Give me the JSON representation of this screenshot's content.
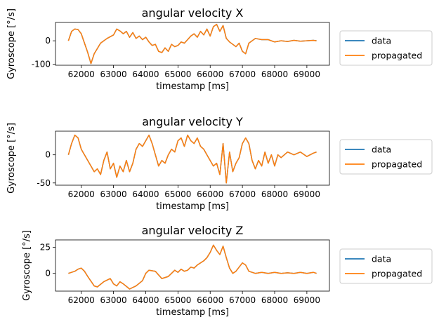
{
  "colors": {
    "data": "#1f77b4",
    "propagated": "#ff7f0e",
    "axis": "#000000",
    "legend_border": "#cccccc"
  },
  "chart_data": [
    {
      "type": "line",
      "title": "angular velocity X",
      "xlabel": "timestamp [ms]",
      "ylabel": "Gyroscope [°/s]",
      "xlim": [
        61200,
        69700
      ],
      "ylim": [
        -104,
        78
      ],
      "xticks": [
        62000,
        63000,
        64000,
        65000,
        66000,
        67000,
        68000,
        69000
      ],
      "yticks": [
        -100,
        0
      ],
      "legend": "right-outside",
      "series": [
        {
          "name": "data",
          "color": "#1f77b4"
        },
        {
          "name": "propagated",
          "color": "#ff7f0e"
        }
      ],
      "x": [
        61600,
        61700,
        61800,
        61900,
        62000,
        62100,
        62200,
        62300,
        62400,
        62600,
        62800,
        63000,
        63100,
        63200,
        63300,
        63400,
        63500,
        63600,
        63700,
        63800,
        63900,
        64000,
        64100,
        64200,
        64300,
        64400,
        64500,
        64600,
        64700,
        64800,
        64900,
        65000,
        65100,
        65200,
        65300,
        65400,
        65500,
        65600,
        65700,
        65800,
        65900,
        66000,
        66100,
        66200,
        66300,
        66400,
        66500,
        66600,
        66700,
        66800,
        66900,
        67000,
        67100,
        67200,
        67400,
        67600,
        67800,
        68000,
        68200,
        68400,
        68600,
        68800,
        69000,
        69200,
        69300
      ],
      "y": [
        0,
        40,
        50,
        48,
        30,
        -10,
        -50,
        -97,
        -55,
        -10,
        10,
        25,
        50,
        42,
        30,
        40,
        15,
        35,
        10,
        20,
        5,
        15,
        -5,
        -20,
        -15,
        -45,
        -50,
        -30,
        -45,
        -15,
        -25,
        -20,
        -5,
        -10,
        5,
        20,
        30,
        15,
        40,
        25,
        50,
        20,
        60,
        70,
        40,
        65,
        10,
        -5,
        -15,
        -25,
        -10,
        -45,
        -55,
        -10,
        10,
        5,
        5,
        -5,
        0,
        -3,
        2,
        -2,
        0,
        2,
        0
      ]
    },
    {
      "type": "line",
      "title": "angular velocity Y",
      "xlabel": "timestamp [ms]",
      "ylabel": "Gyroscope [°/s]",
      "xlim": [
        61200,
        69700
      ],
      "ylim": [
        -54,
        42
      ],
      "xticks": [
        62000,
        63000,
        64000,
        65000,
        66000,
        67000,
        68000,
        69000
      ],
      "yticks": [
        -50,
        0
      ],
      "legend": "right-outside",
      "series": [
        {
          "name": "data",
          "color": "#1f77b4"
        },
        {
          "name": "propagated",
          "color": "#ff7f0e"
        }
      ],
      "x": [
        61600,
        61700,
        61800,
        61900,
        62000,
        62100,
        62200,
        62300,
        62400,
        62500,
        62600,
        62700,
        62800,
        62900,
        63000,
        63100,
        63200,
        63300,
        63400,
        63500,
        63600,
        63700,
        63800,
        63900,
        64000,
        64100,
        64200,
        64300,
        64400,
        64500,
        64600,
        64700,
        64800,
        64900,
        65000,
        65100,
        65200,
        65300,
        65400,
        65500,
        65600,
        65700,
        65800,
        65900,
        66000,
        66100,
        66200,
        66300,
        66400,
        66500,
        66600,
        66700,
        66800,
        66900,
        67000,
        67100,
        67200,
        67300,
        67400,
        67500,
        67600,
        67700,
        67800,
        67900,
        68000,
        68100,
        68200,
        68400,
        68600,
        68800,
        69000,
        69200,
        69300
      ],
      "y": [
        0,
        20,
        35,
        30,
        10,
        0,
        -10,
        -20,
        -30,
        -25,
        -35,
        -10,
        5,
        -25,
        -15,
        -40,
        -20,
        -30,
        -10,
        -30,
        -15,
        10,
        20,
        15,
        25,
        35,
        20,
        0,
        -20,
        -10,
        -15,
        0,
        10,
        5,
        25,
        30,
        15,
        35,
        25,
        20,
        30,
        15,
        10,
        0,
        -10,
        -20,
        -15,
        -35,
        20,
        -50,
        5,
        -30,
        -15,
        -5,
        20,
        30,
        20,
        -10,
        -25,
        -10,
        -20,
        5,
        -15,
        0,
        -20,
        0,
        -5,
        5,
        0,
        5,
        -3,
        3,
        5
      ]
    },
    {
      "type": "line",
      "title": "angular velocity Z",
      "xlabel": "timestamp [ms]",
      "ylabel": "Gyroscope [°/s]",
      "xlim": [
        61200,
        69700
      ],
      "ylim": [
        -17,
        32
      ],
      "xticks": [
        62000,
        63000,
        64000,
        65000,
        66000,
        67000,
        68000,
        69000
      ],
      "yticks": [
        0,
        25
      ],
      "legend": "right-outside",
      "series": [
        {
          "name": "data",
          "color": "#1f77b4"
        },
        {
          "name": "propagated",
          "color": "#ff7f0e"
        }
      ],
      "x": [
        61600,
        61800,
        61900,
        62000,
        62100,
        62200,
        62400,
        62500,
        62700,
        62900,
        63000,
        63100,
        63200,
        63300,
        63500,
        63700,
        63900,
        64000,
        64100,
        64300,
        64500,
        64700,
        64800,
        64900,
        65000,
        65100,
        65200,
        65300,
        65400,
        65500,
        65600,
        65700,
        65800,
        65900,
        66000,
        66100,
        66200,
        66300,
        66400,
        66500,
        66600,
        66700,
        66800,
        66900,
        67000,
        67100,
        67200,
        67400,
        67600,
        67800,
        68000,
        68200,
        68400,
        68600,
        68800,
        69000,
        69200,
        69300
      ],
      "y": [
        0,
        2,
        4,
        5,
        2,
        -3,
        -12,
        -13,
        -8,
        -5,
        -10,
        -12,
        -8,
        -10,
        -15,
        -12,
        -7,
        0,
        3,
        2,
        -5,
        -3,
        0,
        3,
        1,
        4,
        2,
        3,
        6,
        5,
        8,
        10,
        12,
        15,
        20,
        27,
        22,
        18,
        26,
        15,
        5,
        0,
        2,
        6,
        10,
        8,
        2,
        0,
        1,
        0,
        1,
        0,
        0.5,
        0,
        1,
        0,
        1,
        0
      ]
    }
  ]
}
